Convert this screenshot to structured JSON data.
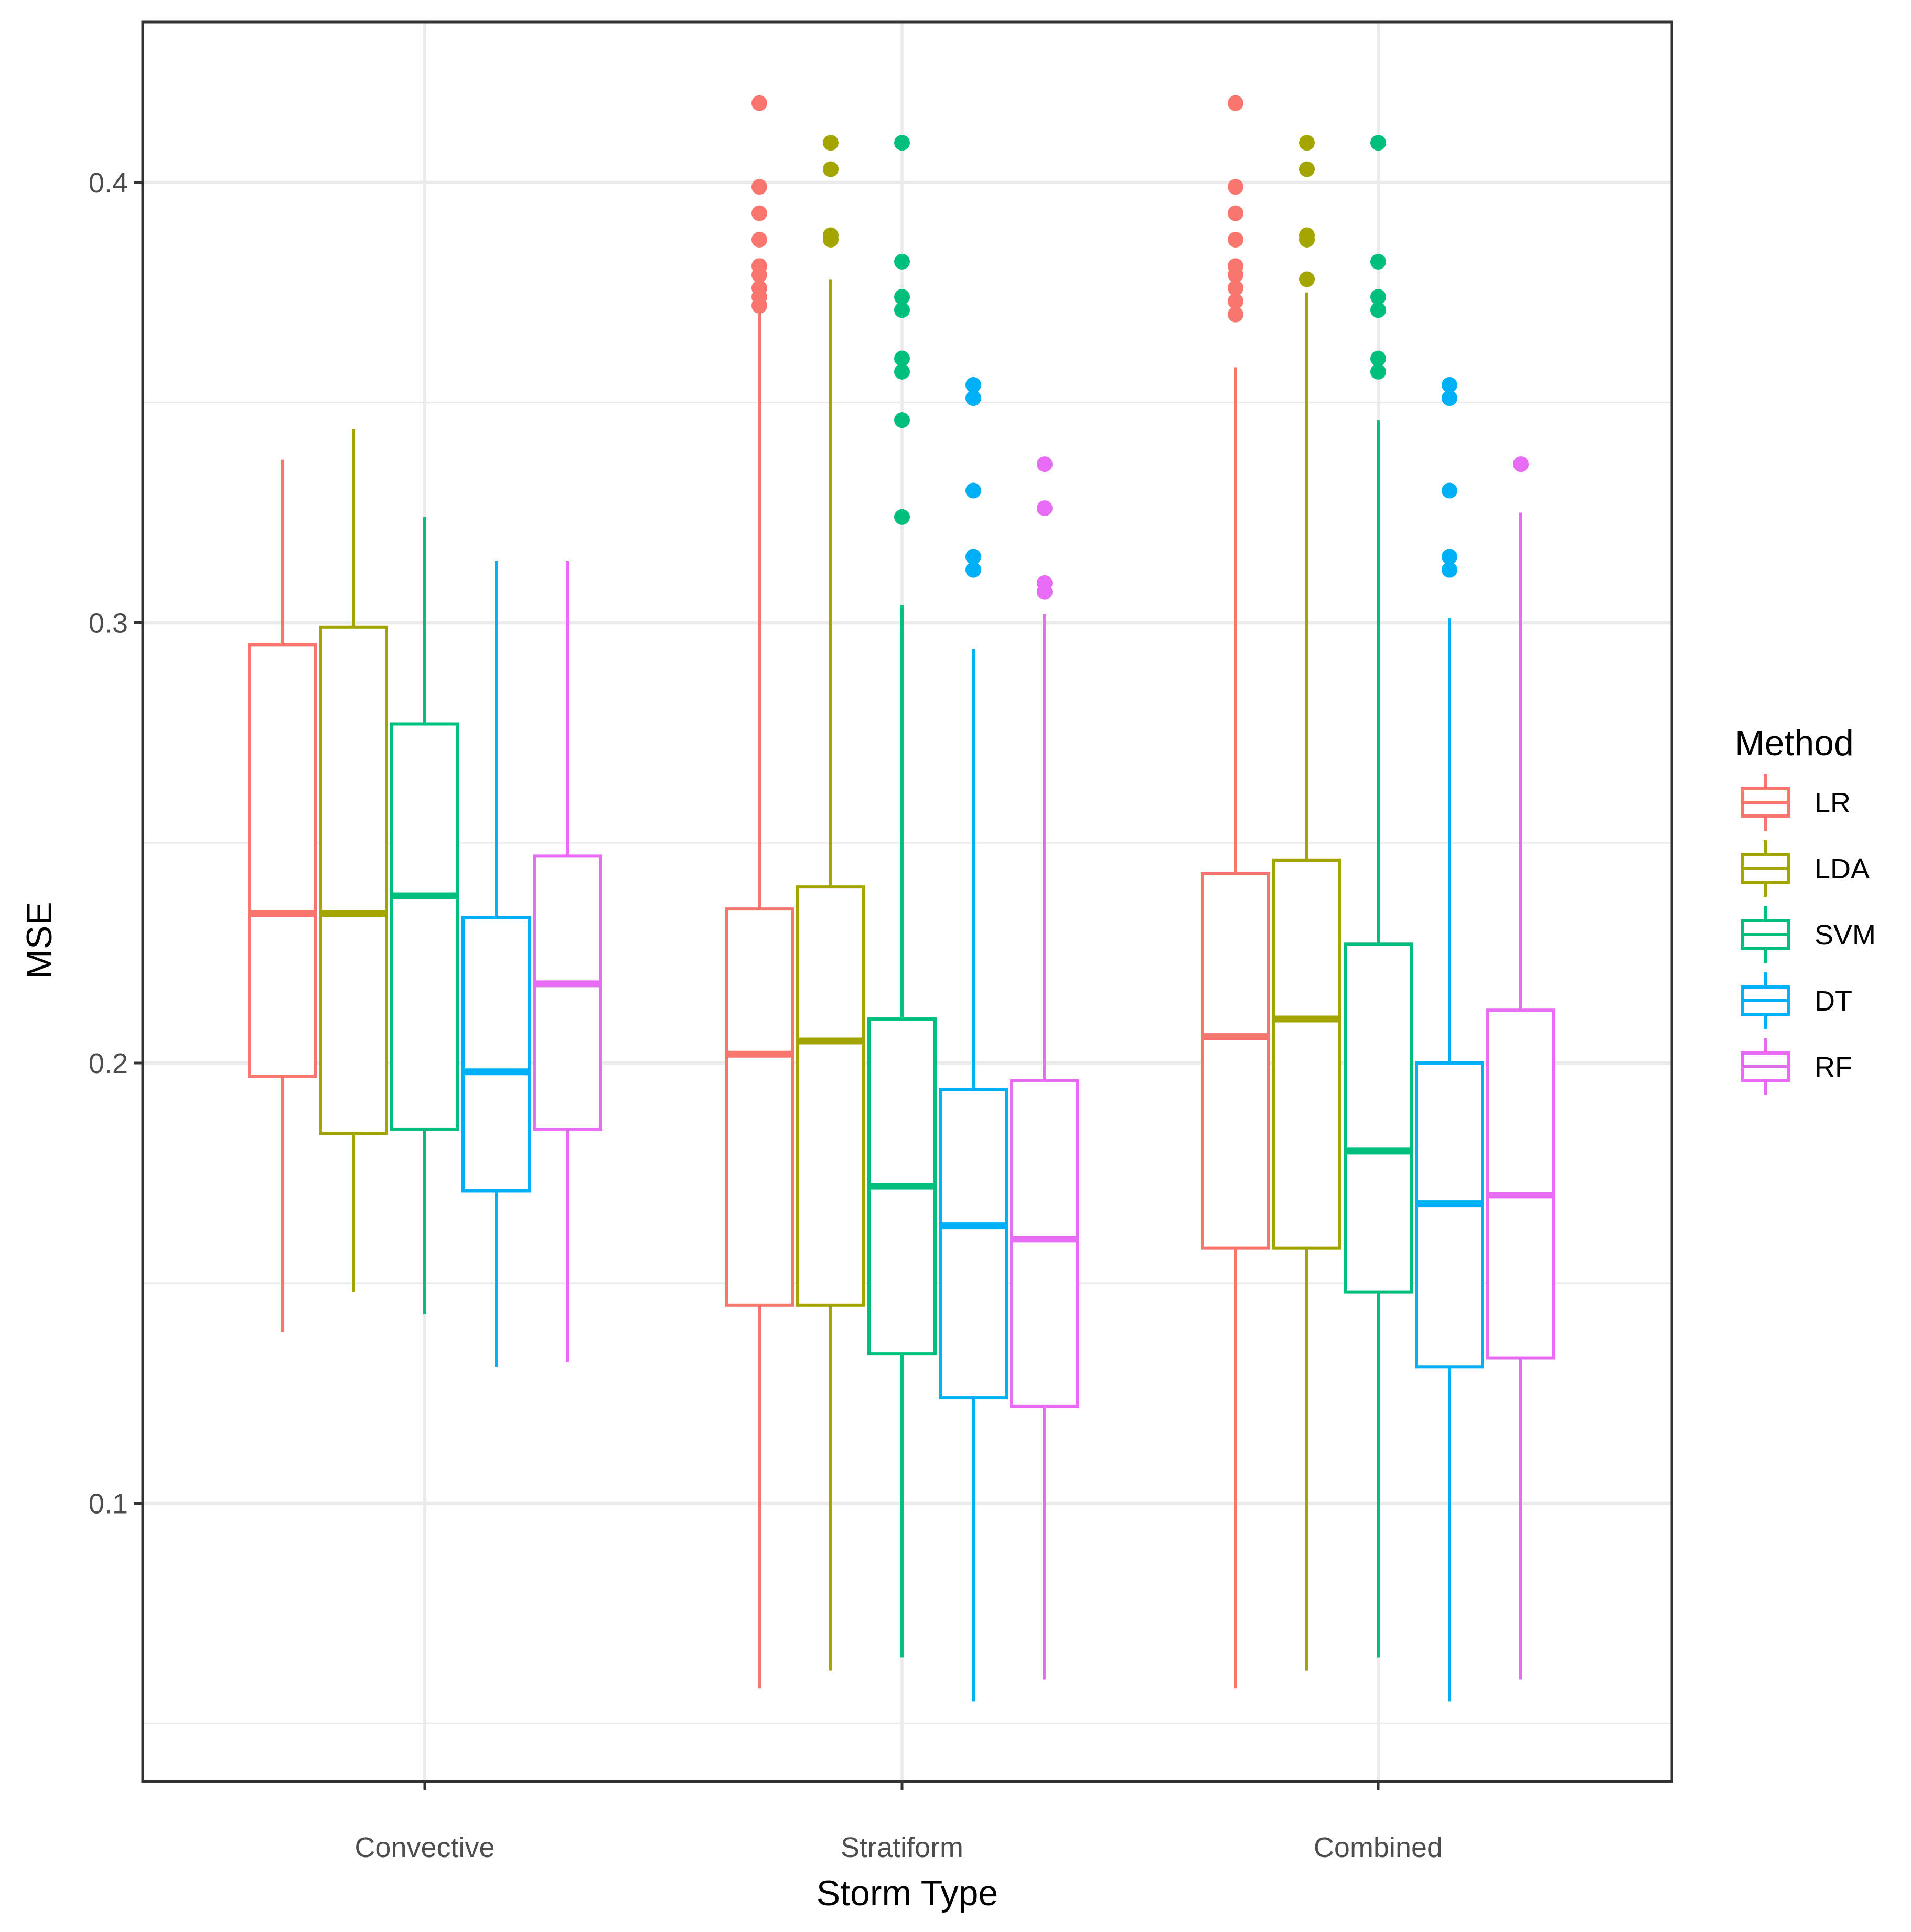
{
  "chart_data": {
    "type": "boxplot",
    "title": "",
    "xlabel": "Storm Type",
    "ylabel": "MSE",
    "categories": [
      "Convective",
      "Stratiform",
      "Combined"
    ],
    "yticks": [
      0.1,
      0.2,
      0.3,
      0.4
    ],
    "ytick_labels": [
      "0.1",
      "0.2",
      "0.3",
      "0.4"
    ],
    "ylim": [
      0.036,
      0.439
    ],
    "grid": true,
    "legend": {
      "title": "Method",
      "placement": "right"
    },
    "series": [
      {
        "name": "LR",
        "color": "#F8766D",
        "boxes": [
          {
            "category": "Convective",
            "whisker_low": 0.139,
            "q1": 0.197,
            "median": 0.234,
            "q3": 0.295,
            "whisker_high": 0.337,
            "outliers": []
          },
          {
            "category": "Stratiform",
            "whisker_low": 0.058,
            "q1": 0.145,
            "median": 0.202,
            "q3": 0.235,
            "whisker_high": 0.372,
            "outliers": [
              0.372,
              0.374,
              0.376,
              0.379,
              0.381,
              0.387,
              0.393,
              0.399,
              0.418
            ]
          },
          {
            "category": "Combined",
            "whisker_low": 0.058,
            "q1": 0.158,
            "median": 0.206,
            "q3": 0.243,
            "whisker_high": 0.358,
            "outliers": [
              0.37,
              0.373,
              0.376,
              0.379,
              0.381,
              0.387,
              0.393,
              0.399,
              0.418
            ]
          }
        ]
      },
      {
        "name": "LDA",
        "color": "#A3A500",
        "boxes": [
          {
            "category": "Convective",
            "whisker_low": 0.148,
            "q1": 0.184,
            "median": 0.234,
            "q3": 0.299,
            "whisker_high": 0.344,
            "outliers": []
          },
          {
            "category": "Stratiform",
            "whisker_low": 0.062,
            "q1": 0.145,
            "median": 0.205,
            "q3": 0.24,
            "whisker_high": 0.378,
            "outliers": [
              0.387,
              0.388,
              0.403,
              0.409
            ]
          },
          {
            "category": "Combined",
            "whisker_low": 0.062,
            "q1": 0.158,
            "median": 0.21,
            "q3": 0.246,
            "whisker_high": 0.375,
            "outliers": [
              0.378,
              0.387,
              0.388,
              0.403,
              0.409
            ]
          }
        ]
      },
      {
        "name": "SVM",
        "color": "#00BF7D",
        "boxes": [
          {
            "category": "Convective",
            "whisker_low": 0.143,
            "q1": 0.185,
            "median": 0.238,
            "q3": 0.277,
            "whisker_high": 0.324,
            "outliers": []
          },
          {
            "category": "Stratiform",
            "whisker_low": 0.065,
            "q1": 0.134,
            "median": 0.172,
            "q3": 0.21,
            "whisker_high": 0.304,
            "outliers": [
              0.324,
              0.346,
              0.357,
              0.36,
              0.371,
              0.374,
              0.382,
              0.409
            ]
          },
          {
            "category": "Combined",
            "whisker_low": 0.065,
            "q1": 0.148,
            "median": 0.18,
            "q3": 0.227,
            "whisker_high": 0.346,
            "outliers": [
              0.357,
              0.36,
              0.371,
              0.374,
              0.382,
              0.409
            ]
          }
        ]
      },
      {
        "name": "DT",
        "color": "#00B0F6",
        "boxes": [
          {
            "category": "Convective",
            "whisker_low": 0.131,
            "q1": 0.171,
            "median": 0.198,
            "q3": 0.233,
            "whisker_high": 0.314,
            "outliers": []
          },
          {
            "category": "Stratiform",
            "whisker_low": 0.055,
            "q1": 0.124,
            "median": 0.163,
            "q3": 0.194,
            "whisker_high": 0.294,
            "outliers": [
              0.312,
              0.315,
              0.33,
              0.351,
              0.354
            ]
          },
          {
            "category": "Combined",
            "whisker_low": 0.055,
            "q1": 0.131,
            "median": 0.168,
            "q3": 0.2,
            "whisker_high": 0.301,
            "outliers": [
              0.312,
              0.315,
              0.33,
              0.351,
              0.354
            ]
          }
        ]
      },
      {
        "name": "RF",
        "color": "#E76BF3",
        "boxes": [
          {
            "category": "Convective",
            "whisker_low": 0.132,
            "q1": 0.185,
            "median": 0.218,
            "q3": 0.247,
            "whisker_high": 0.314,
            "outliers": []
          },
          {
            "category": "Stratiform",
            "whisker_low": 0.06,
            "q1": 0.122,
            "median": 0.16,
            "q3": 0.196,
            "whisker_high": 0.302,
            "outliers": [
              0.307,
              0.309,
              0.326,
              0.336
            ]
          },
          {
            "category": "Combined",
            "whisker_low": 0.06,
            "q1": 0.133,
            "median": 0.17,
            "q3": 0.212,
            "whisker_high": 0.325,
            "outliers": [
              0.336
            ]
          }
        ]
      }
    ]
  }
}
